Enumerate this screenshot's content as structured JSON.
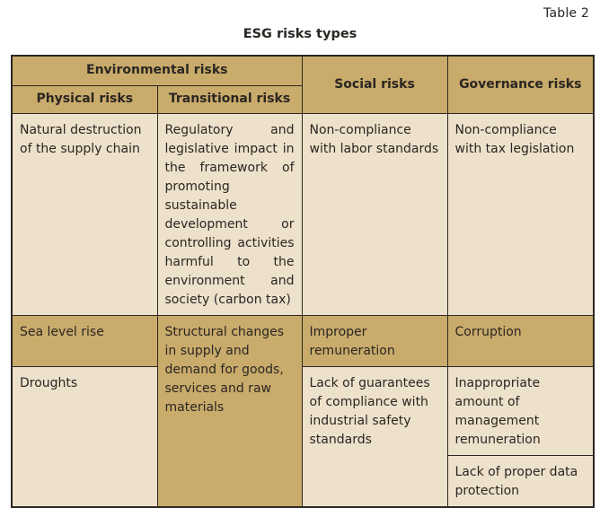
{
  "table_label": "Table 2",
  "title": "ESG risks types",
  "headers": {
    "environmental": "Environmental risks",
    "physical": "Physical risks",
    "transitional": "Transitional risks",
    "social": "Social risks",
    "governance": "Governance risks"
  },
  "rows": {
    "r1": {
      "physical": "Natural destruction of the supply chain",
      "transitional": "Regulatory and legislative impact in the framework of promoting sustainable development or controlling activities harmful to the environment and society (carbon tax)",
      "social": "Non-compliance with labor standards",
      "governance": "Non-compliance with tax legislation"
    },
    "r2": {
      "physical": "Sea level rise",
      "transitional": "Structural changes in supply and demand for goods, services and raw materials",
      "social": "Improper remuneration",
      "governance": "Corruption"
    },
    "r3": {
      "physical": "Droughts",
      "social": "Lack of guarantees of compliance with industrial safety standards",
      "governance_a": "Inappropriate amount of management remuneration",
      "governance_b": "Lack of proper data protection"
    }
  }
}
